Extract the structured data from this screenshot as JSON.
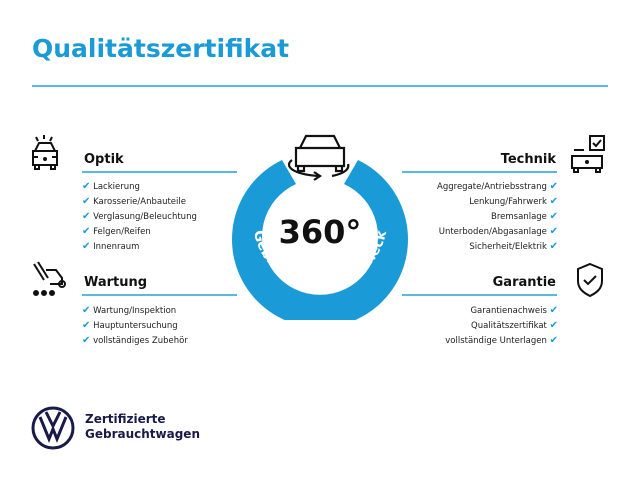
{
  "title": "Qualitätszertifikat",
  "center": {
    "big": "360°",
    "arc": "Gebrauchtwagen-Check"
  },
  "sections": {
    "optik": {
      "title": "Optik",
      "items": [
        "Lackierung",
        "Karosserie/Anbauteile",
        "Verglasung/Beleuchtung",
        "Felgen/Reifen",
        "Innenraum"
      ]
    },
    "wartung": {
      "title": "Wartung",
      "items": [
        "Wartung/Inspektion",
        "Hauptuntersuchung",
        "vollständiges Zubehör"
      ]
    },
    "technik": {
      "title": "Technik",
      "items": [
        "Aggregate/Antriebsstrang",
        "Lenkung/Fahrwerk",
        "Bremsanlage",
        "Unterboden/Abgasanlage",
        "Sicherheit/Elektrik"
      ]
    },
    "garantie": {
      "title": "Garantie",
      "items": [
        "Garantienachweis",
        "Qualitätszertifikat",
        "vollständige Unterlagen"
      ]
    }
  },
  "brand": {
    "line1": "Zertifizierte",
    "line2": "Gebrauchtwagen",
    "logo": "VW"
  },
  "colors": {
    "accent": "#1a9ad6",
    "line": "#5bb8de"
  }
}
